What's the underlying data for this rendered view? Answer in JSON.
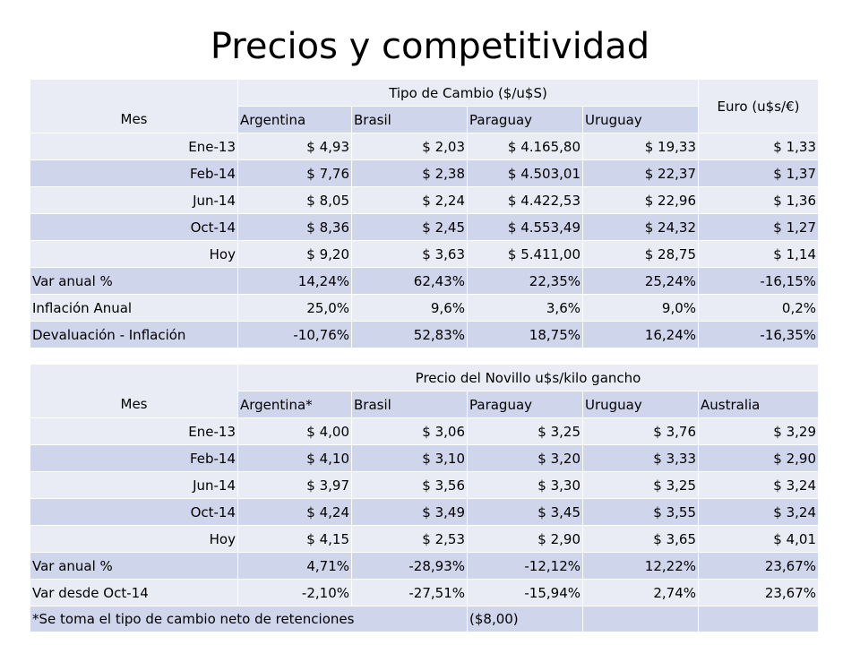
{
  "title": "Precios y competitividad",
  "table1": {
    "row_header": "Mes",
    "group_header": "Tipo de Cambio ($/u$S)",
    "columns": [
      "Argentina",
      "Brasil",
      "Paraguay",
      "Uruguay"
    ],
    "last_header": "Euro (u$s/€)",
    "rows": [
      {
        "label": "Ene-13",
        "values": [
          "$ 4,93",
          "$ 2,03",
          "$ 4.165,80",
          "$ 19,33",
          "$ 1,33"
        ]
      },
      {
        "label": "Feb-14",
        "values": [
          "$ 7,76",
          "$ 2,38",
          "$ 4.503,01",
          "$ 22,37",
          "$ 1,37"
        ]
      },
      {
        "label": "Jun-14",
        "values": [
          "$ 8,05",
          "$ 2,24",
          "$ 4.422,53",
          "$ 22,96",
          "$ 1,36"
        ]
      },
      {
        "label": "Oct-14",
        "values": [
          "$ 8,36",
          "$ 2,45",
          "$ 4.553,49",
          "$ 24,32",
          "$ 1,27"
        ]
      },
      {
        "label": "Hoy",
        "values": [
          "$ 9,20",
          "$ 3,63",
          "$ 5.411,00",
          "$ 28,75",
          "$ 1,14"
        ]
      },
      {
        "label": "Var anual %",
        "values": [
          "14,24%",
          "62,43%",
          "22,35%",
          "25,24%",
          "-16,15%"
        ]
      },
      {
        "label": "Inflación Anual",
        "values": [
          "25,0%",
          "9,6%",
          "3,6%",
          "9,0%",
          "0,2%"
        ]
      },
      {
        "label": "Devaluación - Inflación",
        "values": [
          "-10,76%",
          "52,83%",
          "18,75%",
          "16,24%",
          "-16,35%"
        ]
      }
    ]
  },
  "table2": {
    "row_header": "Mes",
    "group_header": "Precio del Novillo u$s/kilo gancho",
    "columns": [
      "Argentina*",
      "Brasil",
      "Paraguay",
      "Uruguay",
      "Australia"
    ],
    "rows": [
      {
        "label": "Ene-13",
        "values": [
          "$ 4,00",
          "$ 3,06",
          "$ 3,25",
          "$ 3,76",
          "$ 3,29"
        ]
      },
      {
        "label": "Feb-14",
        "values": [
          "$ 4,10",
          "$ 3,10",
          "$ 3,20",
          "$ 3,33",
          "$ 2,90"
        ]
      },
      {
        "label": "Jun-14",
        "values": [
          "$ 3,97",
          "$ 3,56",
          "$ 3,30",
          "$ 3,25",
          "$ 3,24"
        ]
      },
      {
        "label": "Oct-14",
        "values": [
          "$ 4,24",
          "$ 3,49",
          "$ 3,45",
          "$ 3,55",
          "$ 3,24"
        ]
      },
      {
        "label": "Hoy",
        "values": [
          "$ 4,15",
          "$ 2,53",
          "$ 2,90",
          "$ 3,65",
          "$ 4,01"
        ]
      },
      {
        "label": "Var anual %",
        "values": [
          "4,71%",
          "-28,93%",
          "-12,12%",
          "12,22%",
          "23,67%"
        ]
      },
      {
        "label": "Var desde Oct-14",
        "values": [
          "-2,10%",
          "-27,51%",
          "-15,94%",
          "2,74%",
          "23,67%"
        ]
      }
    ],
    "footnote": "*Se toma el tipo de cambio neto de retenciones",
    "footnote_value": "($8,00)"
  },
  "colors": {
    "band_light": "#e9ebf5",
    "band_dark": "#cfd5ea",
    "text": "#000000"
  }
}
